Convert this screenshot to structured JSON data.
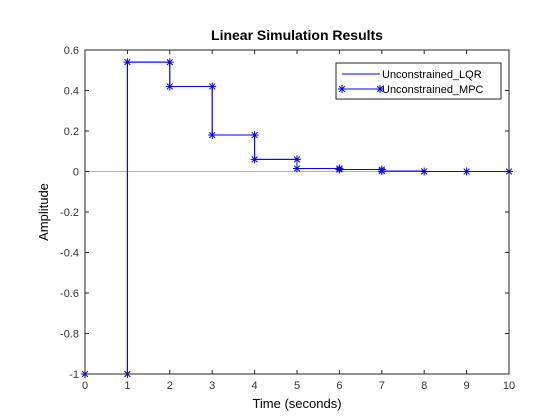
{
  "chart_data": {
    "type": "line",
    "title": "Linear Simulation Results",
    "xlabel": "Time (seconds)",
    "ylabel": "Amplitude",
    "xlim": [
      0,
      10
    ],
    "ylim": [
      -1,
      0.6
    ],
    "x_ticks": [
      "0",
      "1",
      "2",
      "3",
      "4",
      "5",
      "6",
      "7",
      "8",
      "9",
      "10"
    ],
    "y_ticks": [
      "-1",
      "-0.8",
      "-0.6",
      "-0.4",
      "-0.2",
      "0",
      "0.2",
      "0.4",
      "0.6"
    ],
    "y_tick_values": [
      -1,
      -0.8,
      -0.6,
      -0.4,
      -0.2,
      0,
      0.2,
      0.4,
      0.6
    ],
    "x": [
      0,
      1,
      2,
      3,
      4,
      5,
      6,
      7,
      8,
      9,
      10
    ],
    "series": [
      {
        "name": "Unconstrained_LQR",
        "style": "stairs",
        "color": "#0000ff",
        "values": [
          -1,
          0.54,
          0.42,
          0.18,
          0.06,
          0.015,
          0.01,
          0.002,
          0.0,
          0.0,
          0.0
        ]
      },
      {
        "name": "Unconstrained_MPC",
        "style": "stairs-markers",
        "marker": "asterisk",
        "color": "#0000ff",
        "values": [
          -1,
          0.54,
          0.42,
          0.18,
          0.06,
          0.015,
          0.01,
          0.002,
          0.0,
          0.0,
          0.0
        ]
      }
    ],
    "reference_line": {
      "y": 0,
      "color": "#b0b0b0"
    },
    "legend_position": "top-right",
    "grid": false
  }
}
